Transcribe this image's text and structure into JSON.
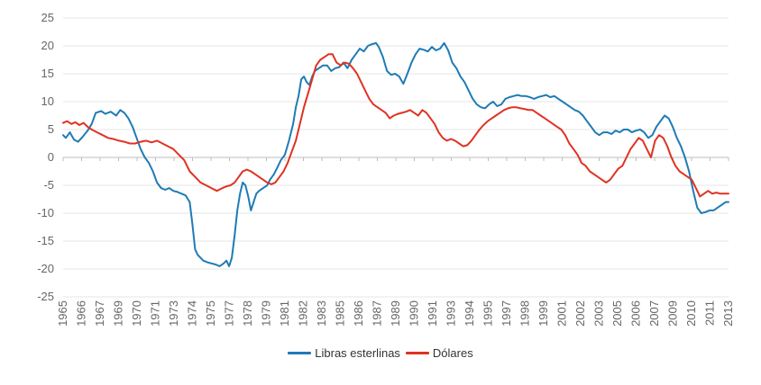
{
  "chart_data": {
    "type": "line",
    "title": "",
    "xlabel": "",
    "ylabel": "",
    "ylim": [
      -25,
      25
    ],
    "yticks": [
      25,
      20,
      15,
      10,
      5,
      0,
      -5,
      -10,
      -15,
      -20,
      -25
    ],
    "xlim": [
      1965.0,
      2013.9
    ],
    "x_tick_labels": [
      "1965",
      "1966",
      "1967",
      "1969",
      "1970",
      "1971",
      "1973",
      "1974",
      "1975",
      "1977",
      "1978",
      "1979",
      "1981",
      "1982",
      "1983",
      "1985",
      "1986",
      "1987",
      "1989",
      "1990",
      "1991",
      "1993",
      "1994",
      "1995",
      "1997",
      "1998",
      "1999",
      "2001",
      "2002",
      "2003",
      "2005",
      "2006",
      "2007",
      "2009",
      "2010",
      "2011",
      "2013"
    ],
    "grid": true,
    "legend_position": "bottom",
    "series": [
      {
        "name": "Libras esterlinas",
        "color": "#1f7bb5",
        "x": [
          1965.0,
          1965.2,
          1965.5,
          1965.8,
          1966.1,
          1966.4,
          1966.8,
          1967.1,
          1967.4,
          1967.8,
          1968.1,
          1968.5,
          1968.9,
          1969.2,
          1969.5,
          1969.8,
          1970.1,
          1970.4,
          1970.7,
          1971.0,
          1971.3,
          1971.6,
          1971.9,
          1972.2,
          1972.5,
          1972.8,
          1973.1,
          1973.4,
          1973.7,
          1974.0,
          1974.3,
          1974.5,
          1974.7,
          1974.9,
          1975.1,
          1975.3,
          1975.6,
          1975.9,
          1976.2,
          1976.5,
          1976.8,
          1977.0,
          1977.2,
          1977.4,
          1977.6,
          1977.8,
          1978.0,
          1978.2,
          1978.4,
          1978.6,
          1978.8,
          1979.0,
          1979.2,
          1979.4,
          1979.7,
          1980.0,
          1980.2,
          1980.5,
          1980.8,
          1981.0,
          1981.3,
          1981.6,
          1981.9,
          1982.1,
          1982.3,
          1982.5,
          1982.7,
          1982.9,
          1983.1,
          1983.3,
          1983.5,
          1983.8,
          1984.1,
          1984.4,
          1984.7,
          1985.0,
          1985.3,
          1985.6,
          1985.9,
          1986.2,
          1986.5,
          1986.8,
          1987.1,
          1987.4,
          1987.7,
          1988.0,
          1988.2,
          1988.5,
          1988.8,
          1989.1,
          1989.4,
          1989.7,
          1990.0,
          1990.3,
          1990.6,
          1990.9,
          1991.2,
          1991.5,
          1991.8,
          1992.1,
          1992.4,
          1992.7,
          1993.0,
          1993.3,
          1993.6,
          1993.9,
          1994.2,
          1994.5,
          1994.8,
          1995.1,
          1995.4,
          1995.7,
          1996.0,
          1996.3,
          1996.6,
          1996.9,
          1997.2,
          1997.5,
          1997.8,
          1998.1,
          1998.4,
          1998.7,
          1999.0,
          1999.3,
          1999.6,
          1999.9,
          2000.2,
          2000.5,
          2000.8,
          2001.1,
          2001.4,
          2001.7,
          2002.0,
          2002.3,
          2002.6,
          2002.9,
          2003.2,
          2003.5,
          2003.8,
          2004.1,
          2004.4,
          2004.7,
          2005.0,
          2005.3,
          2005.6,
          2005.9,
          2006.2,
          2006.5,
          2006.8,
          2007.1,
          2007.4,
          2007.7,
          2008.0,
          2008.3,
          2008.6,
          2008.9,
          2009.2,
          2009.5,
          2009.8,
          2010.1,
          2010.4,
          2010.7,
          2011.0,
          2011.3,
          2011.6,
          2011.9,
          2012.2,
          2012.5,
          2012.8,
          2013.1,
          2013.4,
          2013.7,
          2013.9
        ],
        "y": [
          4.0,
          3.5,
          4.5,
          3.2,
          2.8,
          3.6,
          4.8,
          6.0,
          8.0,
          8.3,
          7.8,
          8.2,
          7.5,
          8.5,
          8.0,
          7.0,
          5.5,
          3.5,
          1.5,
          0.0,
          -1.0,
          -2.5,
          -4.5,
          -5.5,
          -5.8,
          -5.5,
          -6.0,
          -6.2,
          -6.5,
          -6.8,
          -8.0,
          -12.0,
          -16.5,
          -17.5,
          -18.0,
          -18.5,
          -18.8,
          -19.0,
          -19.2,
          -19.5,
          -19.0,
          -18.5,
          -19.5,
          -18.0,
          -14.0,
          -9.5,
          -6.5,
          -4.5,
          -5.0,
          -7.0,
          -9.5,
          -8.0,
          -6.5,
          -6.0,
          -5.5,
          -5.0,
          -4.0,
          -3.0,
          -1.5,
          -0.5,
          0.5,
          3.0,
          6.0,
          9.0,
          11.0,
          14.0,
          14.5,
          13.5,
          13.0,
          14.5,
          15.5,
          16.0,
          16.5,
          16.5,
          15.5,
          16.0,
          16.2,
          17.0,
          16.0,
          17.5,
          18.5,
          19.5,
          19.0,
          20.0,
          20.3,
          20.5,
          19.8,
          18.0,
          15.5,
          14.8,
          15.0,
          14.5,
          13.2,
          15.0,
          17.0,
          18.5,
          19.5,
          19.3,
          19.0,
          19.8,
          19.2,
          19.5,
          20.5,
          19.2,
          17.0,
          16.0,
          14.5,
          13.5,
          12.0,
          10.5,
          9.5,
          9.0,
          8.8,
          9.5,
          10.0,
          9.2,
          9.5,
          10.5,
          10.8,
          11.0,
          11.2,
          11.0,
          11.0,
          10.8,
          10.5,
          10.8,
          11.0,
          11.2,
          10.8,
          11.0,
          10.5,
          10.0,
          9.5,
          9.0,
          8.5,
          8.2,
          7.5,
          6.5,
          5.5,
          4.5,
          4.0,
          4.5,
          4.5,
          4.2,
          4.8,
          4.5,
          5.0,
          5.0,
          4.5,
          4.8,
          5.0,
          4.5,
          3.5,
          4.0,
          5.5,
          6.5,
          7.5,
          7.0,
          5.5,
          3.5,
          2.0,
          0.0,
          -2.5,
          -6.0,
          -9.0,
          -10.0,
          -9.8,
          -9.5,
          -9.5,
          -9.0,
          -8.5,
          -8.0,
          -8.0
        ]
      },
      {
        "name": "Dólares",
        "color": "#e03222",
        "x": [
          1965.0,
          1965.3,
          1965.6,
          1965.9,
          1966.2,
          1966.5,
          1966.8,
          1967.1,
          1967.5,
          1967.9,
          1968.3,
          1968.7,
          1969.1,
          1969.5,
          1969.9,
          1970.3,
          1970.7,
          1971.1,
          1971.5,
          1971.9,
          1972.3,
          1972.7,
          1973.1,
          1973.5,
          1973.9,
          1974.3,
          1974.7,
          1975.1,
          1975.5,
          1975.9,
          1976.3,
          1976.7,
          1977.0,
          1977.3,
          1977.6,
          1977.9,
          1978.2,
          1978.5,
          1978.8,
          1979.1,
          1979.4,
          1979.7,
          1980.0,
          1980.3,
          1980.6,
          1980.9,
          1981.2,
          1981.5,
          1981.8,
          1982.1,
          1982.4,
          1982.7,
          1983.0,
          1983.3,
          1983.6,
          1983.9,
          1984.2,
          1984.5,
          1984.8,
          1985.1,
          1985.4,
          1985.7,
          1986.0,
          1986.3,
          1986.6,
          1986.9,
          1987.2,
          1987.5,
          1987.8,
          1988.1,
          1988.4,
          1988.7,
          1989.0,
          1989.3,
          1989.6,
          1989.9,
          1990.2,
          1990.5,
          1990.8,
          1991.1,
          1991.4,
          1991.7,
          1992.0,
          1992.3,
          1992.6,
          1992.9,
          1993.2,
          1993.5,
          1993.8,
          1994.1,
          1994.4,
          1994.7,
          1995.0,
          1995.3,
          1995.6,
          1995.9,
          1996.2,
          1996.5,
          1996.8,
          1997.1,
          1997.4,
          1997.7,
          1998.0,
          1998.3,
          1998.6,
          1998.9,
          1999.2,
          1999.5,
          1999.8,
          2000.1,
          2000.4,
          2000.7,
          2001.0,
          2001.3,
          2001.6,
          2001.9,
          2002.2,
          2002.5,
          2002.8,
          2003.1,
          2003.4,
          2003.7,
          2004.0,
          2004.3,
          2004.6,
          2004.9,
          2005.2,
          2005.5,
          2005.8,
          2006.1,
          2006.4,
          2006.7,
          2007.0,
          2007.3,
          2007.6,
          2007.9,
          2008.2,
          2008.5,
          2008.8,
          2009.1,
          2009.4,
          2009.7,
          2010.0,
          2010.3,
          2010.6,
          2010.9,
          2011.2,
          2011.5,
          2011.8,
          2012.1,
          2012.4,
          2012.7,
          2013.0,
          2013.3,
          2013.6,
          2013.9
        ],
        "y": [
          6.2,
          6.5,
          6.0,
          6.3,
          5.8,
          6.2,
          5.5,
          5.0,
          4.5,
          4.0,
          3.5,
          3.3,
          3.0,
          2.8,
          2.5,
          2.5,
          2.8,
          3.0,
          2.7,
          3.0,
          2.5,
          2.0,
          1.5,
          0.5,
          -0.5,
          -2.5,
          -3.5,
          -4.5,
          -5.0,
          -5.5,
          -6.0,
          -5.5,
          -5.2,
          -5.0,
          -4.5,
          -3.5,
          -2.5,
          -2.2,
          -2.5,
          -3.0,
          -3.5,
          -4.0,
          -4.5,
          -4.8,
          -4.5,
          -3.5,
          -2.5,
          -1.0,
          1.0,
          3.0,
          6.0,
          9.0,
          11.5,
          14.0,
          16.5,
          17.5,
          18.0,
          18.5,
          18.5,
          17.0,
          16.5,
          17.0,
          16.8,
          16.0,
          15.0,
          13.5,
          12.0,
          10.5,
          9.5,
          9.0,
          8.5,
          8.0,
          7.0,
          7.5,
          7.8,
          8.0,
          8.2,
          8.5,
          8.0,
          7.5,
          8.5,
          8.0,
          7.0,
          6.0,
          4.5,
          3.5,
          3.0,
          3.3,
          3.0,
          2.5,
          2.0,
          2.2,
          3.0,
          4.0,
          5.0,
          5.8,
          6.5,
          7.0,
          7.5,
          8.0,
          8.5,
          8.8,
          9.0,
          9.0,
          8.8,
          8.7,
          8.5,
          8.5,
          8.0,
          7.5,
          7.0,
          6.5,
          6.0,
          5.5,
          5.0,
          4.0,
          2.5,
          1.5,
          0.5,
          -1.0,
          -1.5,
          -2.5,
          -3.0,
          -3.5,
          -4.0,
          -4.5,
          -4.0,
          -3.0,
          -2.0,
          -1.5,
          0.0,
          1.5,
          2.5,
          3.5,
          3.0,
          1.5,
          0.0,
          3.0,
          4.0,
          3.5,
          2.0,
          0.0,
          -1.5,
          -2.5,
          -3.0,
          -3.5,
          -4.0,
          -5.5,
          -7.0,
          -6.5,
          -6.0,
          -6.5,
          -6.3,
          -6.5,
          -6.5,
          -6.5
        ]
      }
    ]
  }
}
